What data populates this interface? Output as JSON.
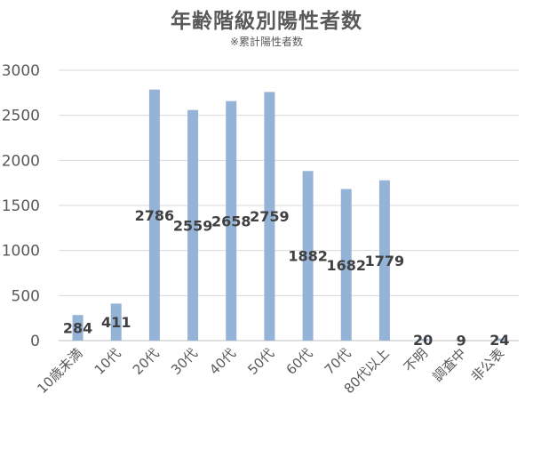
{
  "chart_data": {
    "type": "bar",
    "title": "年齢階級別陽性者数",
    "subtitle": "※累計陽性者数",
    "categories": [
      "10歳未満",
      "10代",
      "20代",
      "30代",
      "40代",
      "50代",
      "60代",
      "70代",
      "80代以上",
      "不明",
      "調査中",
      "非公表"
    ],
    "values": [
      284,
      411,
      2786,
      2559,
      2658,
      2759,
      1882,
      1682,
      1779,
      20,
      9,
      24
    ],
    "data_labels": [
      "284",
      "411",
      "2786",
      "2559",
      "2658",
      "2759",
      "1882",
      "1682",
      "1779",
      "20",
      "9",
      "24"
    ],
    "yticks": [
      "0",
      "500",
      "1000",
      "1500",
      "2000",
      "2500",
      "3000"
    ],
    "ylim": [
      0,
      3000
    ],
    "grid": true,
    "legend": "none",
    "bar_color": "#95B3D7"
  }
}
